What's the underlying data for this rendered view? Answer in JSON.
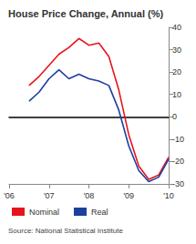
{
  "chart_data": {
    "type": "line",
    "title": "House Price Change, Annual (%)",
    "source": "Source: National Statistical Institute",
    "categories": [
      "'06",
      null,
      null,
      null,
      "'07",
      null,
      null,
      null,
      "'08",
      null,
      null,
      null,
      "'09",
      null,
      null,
      null,
      "'10"
    ],
    "series": [
      {
        "name": "Nominal",
        "color": "#e8141c",
        "values": [
          null,
          null,
          14,
          18,
          23,
          28,
          31,
          35,
          32,
          33,
          27,
          12,
          -8,
          -22,
          -28,
          -26,
          -18
        ]
      },
      {
        "name": "Real",
        "color": "#1d3f9e",
        "values": [
          null,
          null,
          7,
          11,
          17,
          21,
          17,
          19,
          17,
          16,
          14,
          3,
          -13,
          -24,
          -29,
          -27,
          -19
        ]
      }
    ],
    "ylim": [
      -30,
      40
    ],
    "yticks": [
      -30,
      -20,
      -10,
      0,
      10,
      20,
      30,
      40
    ],
    "grid": false,
    "legend": "bottom-left"
  }
}
